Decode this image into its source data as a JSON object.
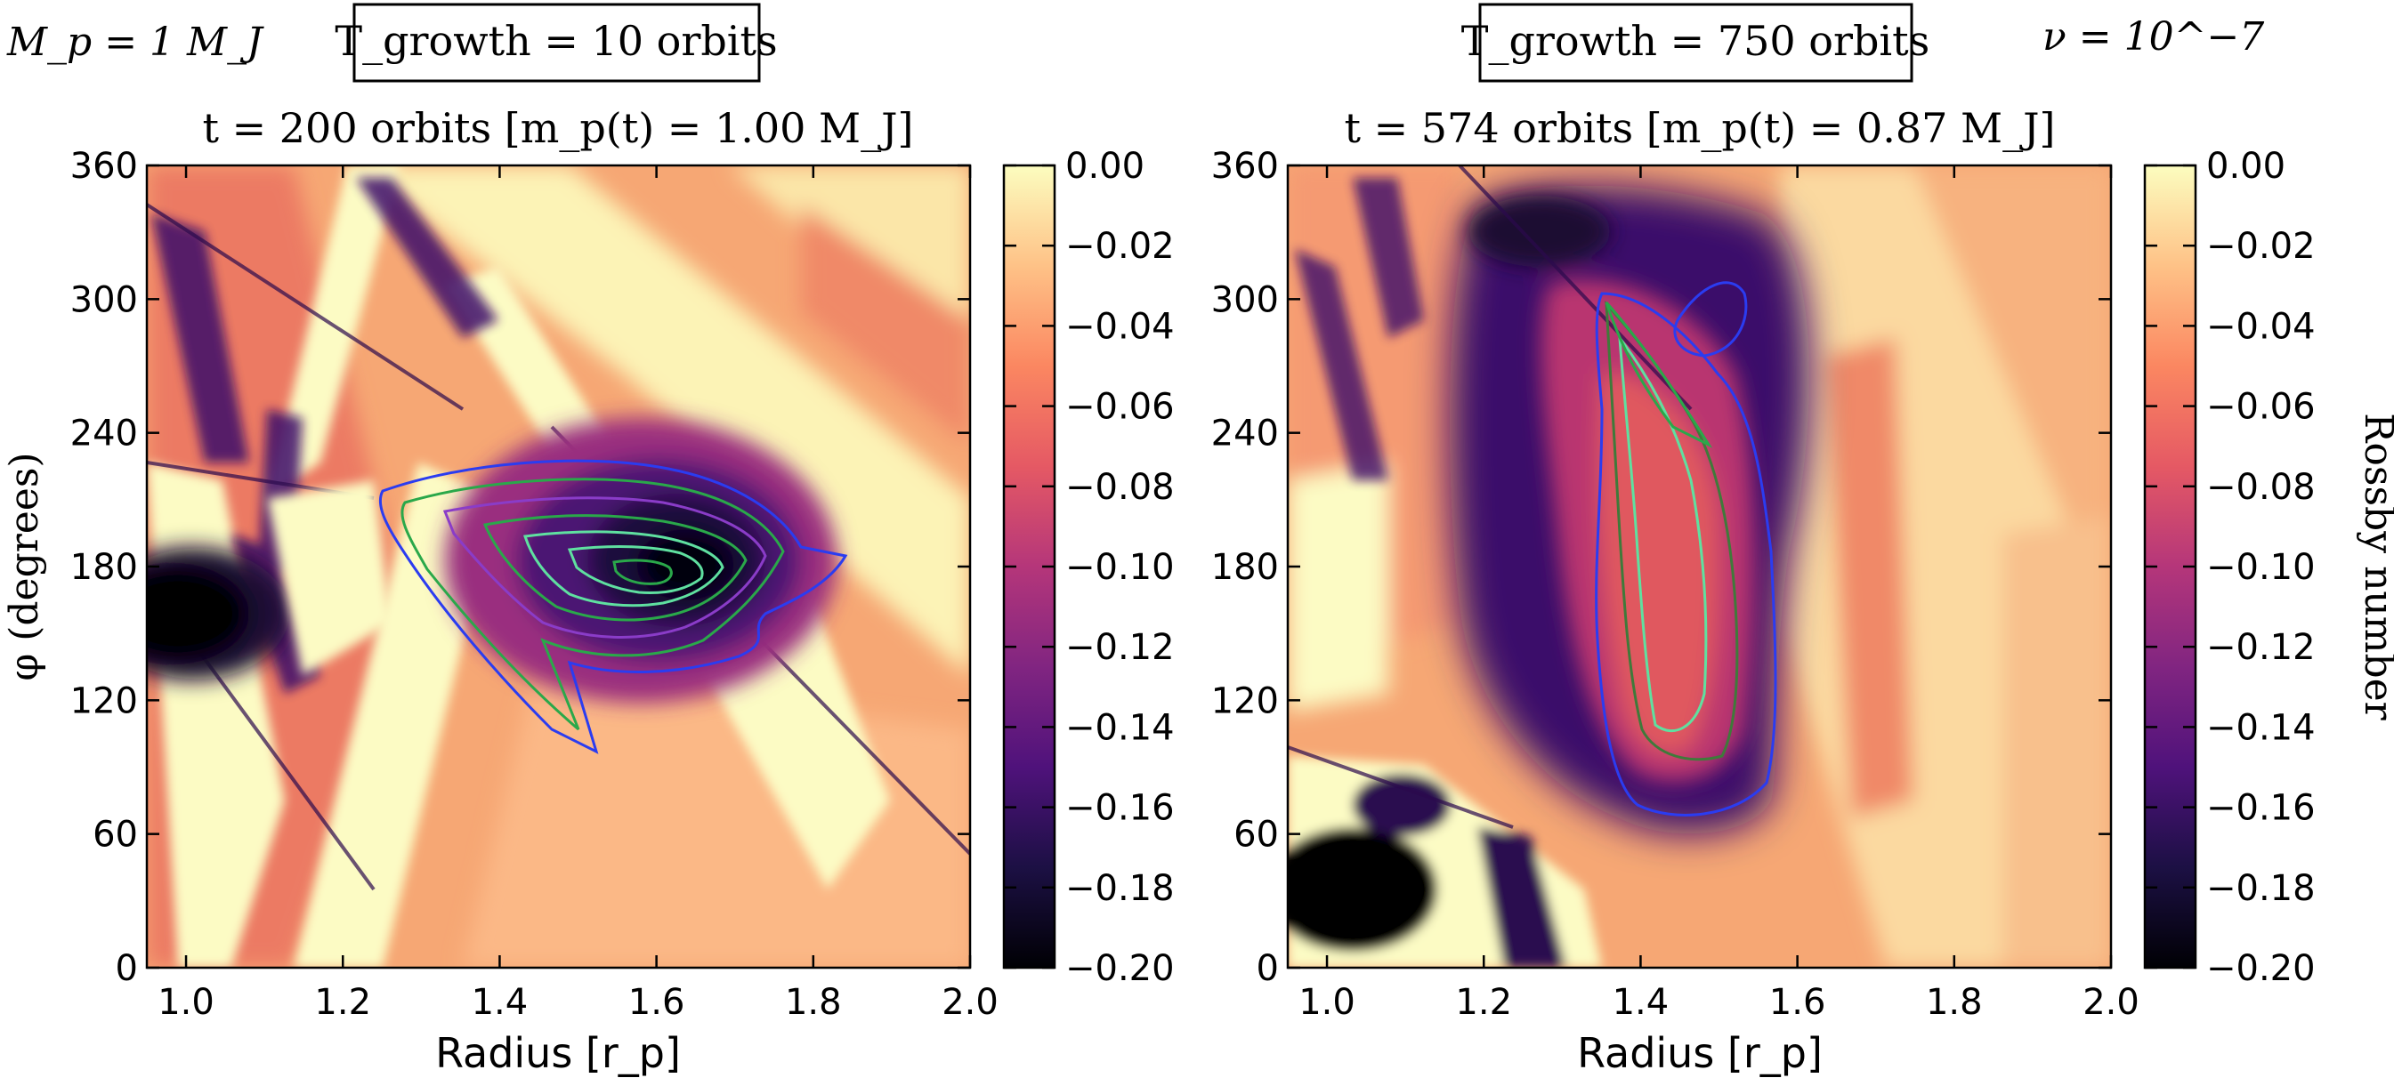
{
  "header": {
    "mass_label": "M_p = 1 M_J",
    "growth_left": "T_growth = 10 orbits",
    "growth_right": "T_growth = 750 orbits",
    "viscosity": "ν = 10^−7"
  },
  "colors": {
    "cmap": [
      "#000004",
      "#1c1044",
      "#4f127b",
      "#812581",
      "#b5367a",
      "#e55964",
      "#fb8761",
      "#fec287",
      "#fcfdbf"
    ],
    "contour_blue": "#2b3cf0",
    "contour_green": "#2aa84a",
    "contour_mint": "#5fe0a0",
    "contour_purple": "#8a3cc8",
    "contour_darkgreen": "#3f7a3a"
  },
  "chart_data": [
    {
      "type": "heatmap",
      "title": "t = 200 orbits  [m_p(t) = 1.00 M_J]",
      "xlabel": "Radius [r_p]",
      "ylabel": "φ (degrees)",
      "xlim": [
        0.95,
        2.0
      ],
      "ylim": [
        0,
        360
      ],
      "xticks": [
        "1.0",
        "1.2",
        "1.4",
        "1.6",
        "1.8",
        "2.0"
      ],
      "yticks": [
        "0",
        "60",
        "120",
        "180",
        "240",
        "300",
        "360"
      ],
      "value_range": [
        -0.2,
        0.0
      ],
      "features": [
        {
          "name": "vortex",
          "r": 1.44,
          "phi": 180,
          "vmin": -0.2
        },
        {
          "name": "inner-dark-blob",
          "r": 0.97,
          "phi": 155,
          "vmin": -0.2
        }
      ]
    },
    {
      "type": "heatmap",
      "title": "t = 574 orbits  [m_p(t) = 0.87 M_J]",
      "xlabel": "Radius [r_p]",
      "ylabel": "",
      "xlim": [
        0.95,
        2.0
      ],
      "ylim": [
        0,
        360
      ],
      "xticks": [
        "1.0",
        "1.2",
        "1.4",
        "1.6",
        "1.8",
        "2.0"
      ],
      "yticks": [
        "0",
        "60",
        "120",
        "180",
        "240",
        "300",
        "360"
      ],
      "value_range": [
        -0.2,
        0.0
      ],
      "colorbar_label": "Rossby number",
      "features": [
        {
          "name": "elongated-vortex",
          "r": 1.45,
          "phi": 200,
          "vmin": -0.15
        },
        {
          "name": "inner-dark-blob",
          "r": 1.0,
          "phi": 30,
          "vmin": -0.2
        }
      ]
    }
  ],
  "colorbar": {
    "ticks": [
      "0.00",
      "−0.02",
      "−0.04",
      "−0.06",
      "−0.08",
      "−0.10",
      "−0.12",
      "−0.14",
      "−0.16",
      "−0.18",
      "−0.20"
    ],
    "label": "Rossby number"
  }
}
